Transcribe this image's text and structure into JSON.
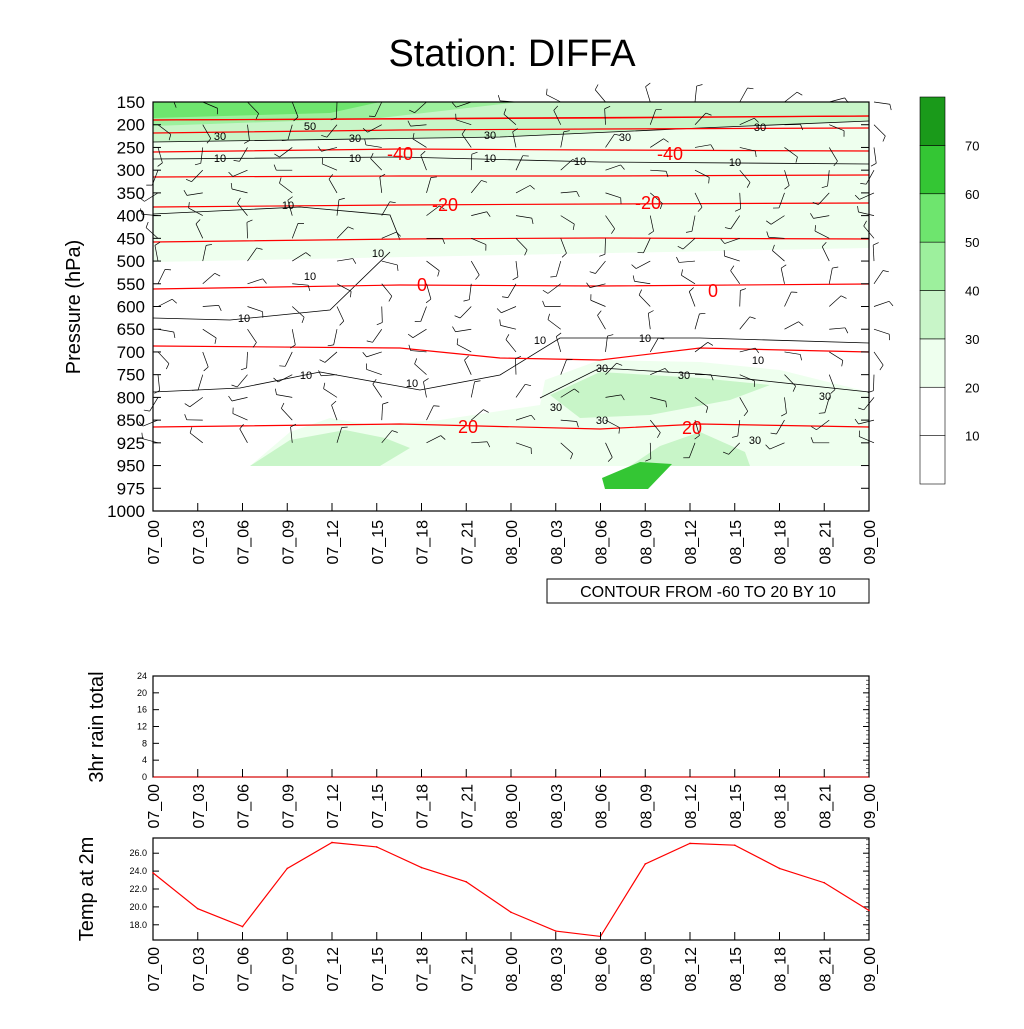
{
  "title": "Station: DIFFA",
  "x_tick_labels": [
    "07_00",
    "07_03",
    "07_06",
    "07_09",
    "07_12",
    "07_15",
    "07_18",
    "07_21",
    "08_00",
    "08_03",
    "08_06",
    "08_09",
    "08_12",
    "08_15",
    "08_18",
    "08_21",
    "09_00"
  ],
  "colors": {
    "temperature_contour": "#ff0000",
    "wind_contour": "#000000",
    "shade_20_30": "#eeffee",
    "shade_30_40": "#c8f5c8",
    "shade_40_50": "#9df09d",
    "shade_50_60": "#6ee56e",
    "shade_60_70": "#34c634",
    "shade_70_plus": "#1a9a1a"
  },
  "chart_data": [
    {
      "type": "heatmap",
      "name": "cross-section",
      "ylabel": "Pressure (hPa)",
      "y_axis_reversed": true,
      "pressure_levels": [
        150,
        200,
        250,
        300,
        350,
        400,
        450,
        500,
        550,
        600,
        650,
        700,
        750,
        800,
        850,
        925,
        950,
        975,
        1000
      ],
      "x": [
        "07_00",
        "07_03",
        "07_06",
        "07_09",
        "07_12",
        "07_15",
        "07_18",
        "07_21",
        "08_00",
        "08_03",
        "08_06",
        "08_09",
        "08_12",
        "08_15",
        "08_18",
        "08_21",
        "09_00"
      ],
      "info_label": "CONTOUR FROM -60 TO 20 BY 10",
      "colorbar": {
        "levels": [
          10,
          20,
          30,
          40,
          50,
          60,
          70
        ],
        "tick_labels": [
          "10",
          "20",
          "30",
          "40",
          "50",
          "60",
          "70"
        ]
      },
      "temperature_contours": [
        {
          "level": -40,
          "label": "-40"
        },
        {
          "level": -20,
          "label": "-20"
        },
        {
          "level": 0,
          "label": "0"
        },
        {
          "level": 20,
          "label": "20"
        }
      ],
      "wind_speed_contour_labels": [
        "10",
        "30",
        "50"
      ]
    },
    {
      "type": "line",
      "name": "rain",
      "ylabel": "3hr rain total",
      "ylim": [
        0,
        24
      ],
      "yticks": [
        "0",
        "4",
        "8",
        "12",
        "16",
        "20",
        "24"
      ],
      "x": [
        "07_00",
        "07_03",
        "07_06",
        "07_09",
        "07_12",
        "07_15",
        "07_18",
        "07_21",
        "08_00",
        "08_03",
        "08_06",
        "08_09",
        "08_12",
        "08_15",
        "08_18",
        "08_21",
        "09_00"
      ],
      "values": [
        0,
        0,
        0,
        0,
        0,
        0,
        0,
        0,
        0,
        0,
        0,
        0,
        0,
        0,
        0,
        0,
        0
      ]
    },
    {
      "type": "line",
      "name": "temp",
      "ylabel": "Temp at 2m",
      "ylim": [
        16.3,
        27.7
      ],
      "yticks": [
        "18.0",
        "20.0",
        "22.0",
        "24.0",
        "26.0"
      ],
      "x": [
        "07_00",
        "07_03",
        "07_06",
        "07_09",
        "07_12",
        "07_15",
        "07_18",
        "07_21",
        "08_00",
        "08_03",
        "08_06",
        "08_09",
        "08_12",
        "08_15",
        "08_18",
        "08_21",
        "09_00"
      ],
      "values": [
        23.8,
        19.8,
        17.8,
        24.3,
        27.2,
        26.7,
        24.4,
        22.8,
        19.4,
        17.3,
        16.7,
        24.8,
        27.1,
        26.9,
        24.3,
        22.7,
        19.6
      ]
    }
  ]
}
